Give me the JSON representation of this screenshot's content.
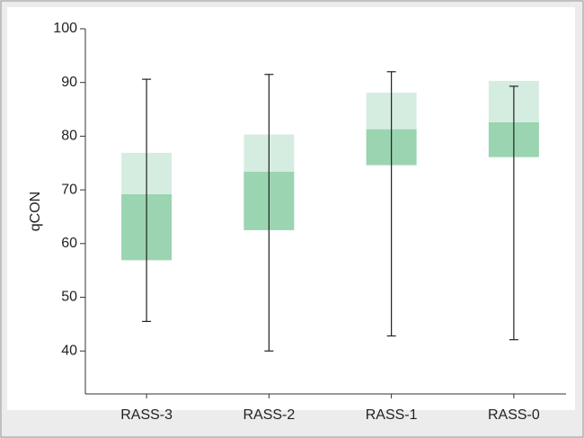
{
  "chart_data": {
    "type": "box",
    "y_label": "qCON",
    "categories": [
      "RASS-3",
      "RASS-2",
      "RASS-1",
      "RASS-0"
    ],
    "whisker_low": [
      45.5,
      40,
      42.8,
      42.1
    ],
    "q1": [
      56.9,
      62.5,
      74.6,
      76.1
    ],
    "median": [
      69.2,
      73.4,
      81.3,
      82.6
    ],
    "q3": [
      76.9,
      80.3,
      88.1,
      90.3
    ],
    "whisker_high": [
      90.6,
      91.5,
      92,
      89.3
    ],
    "lower_color": "#9bd4b0",
    "upper_color": "#d5ede0",
    "ylim": [
      32,
      100
    ],
    "yticks": [
      40,
      50,
      60,
      70,
      80,
      90,
      100
    ]
  }
}
